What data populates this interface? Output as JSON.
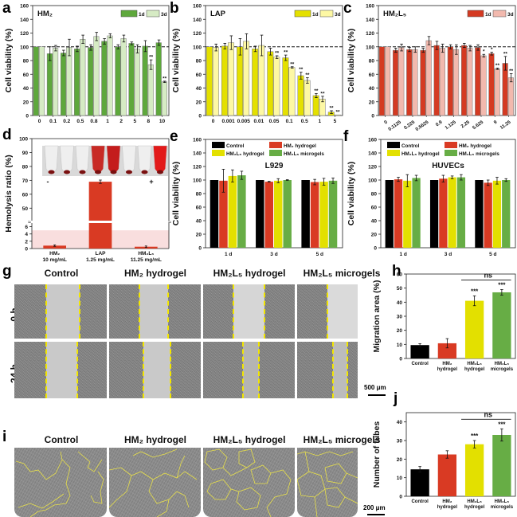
{
  "panels": {
    "a": "a",
    "b": "b",
    "c": "c",
    "d": "d",
    "e": "e",
    "f": "f",
    "g": "g",
    "h": "h",
    "i": "i",
    "j": "j"
  },
  "colors": {
    "green_dark": "#5ea83c",
    "green_light": "#d6ebc4",
    "yellow_dark": "#e4e000",
    "yellow_light": "#fdf8a4",
    "red_dark": "#d43a22",
    "red_light": "#f2b9ae",
    "black": "#000000",
    "red_mid": "#d93a23",
    "yellow_mid": "#e3e000",
    "green_mid": "#67ad45",
    "hemolysis_band": "#f9dede",
    "dash_yellow": "#f2e600"
  },
  "chart_data": [
    {
      "id": "a",
      "type": "bar",
      "title": "HM₂",
      "xlabel": "Concentration (mg/mL)",
      "ylabel": "Cell viability (%)",
      "ylim": [
        0,
        160
      ],
      "yticks": [
        0,
        20,
        40,
        60,
        80,
        100,
        120,
        140,
        160
      ],
      "reference_line": 100,
      "categories": [
        "0",
        "0.1",
        "0.2",
        "0.5",
        "0.8",
        "1",
        "2",
        "5",
        "8",
        "10"
      ],
      "legend": [
        "1d",
        "3d"
      ],
      "series": [
        {
          "name": "1d",
          "values": [
            100,
            90,
            91,
            97,
            99,
            108,
            100,
            105,
            101,
            106
          ],
          "errors": [
            0,
            10,
            4,
            4,
            4,
            4,
            3,
            2,
            8,
            4
          ],
          "marks": [
            "",
            "",
            "",
            "",
            "",
            "",
            "",
            "",
            "",
            ""
          ]
        },
        {
          "name": "3d",
          "values": [
            100,
            98,
            99,
            111,
            115,
            116,
            112,
            97,
            74,
            49
          ],
          "errors": [
            0,
            4,
            12,
            6,
            6,
            3,
            5,
            6,
            7,
            1
          ],
          "marks": [
            "",
            "",
            "",
            "",
            "",
            "",
            "",
            "",
            "**",
            "**"
          ]
        }
      ]
    },
    {
      "id": "b",
      "type": "bar",
      "title": "LAP",
      "xlabel": "Concentration (mg/mL)",
      "ylabel": "Cell viability (%)",
      "ylim": [
        0,
        160
      ],
      "yticks": [
        0,
        20,
        40,
        60,
        80,
        100,
        120,
        140,
        160
      ],
      "reference_line": 100,
      "categories": [
        "0",
        "0.001",
        "0.005",
        "0.01",
        "0.05",
        "0.1",
        "0.5",
        "1",
        "5"
      ],
      "legend": [
        "1d",
        "3d"
      ],
      "series": [
        {
          "name": "1d",
          "values": [
            100,
            101,
            100,
            97,
            93,
            84,
            58,
            29,
            5
          ],
          "errors": [
            0,
            4,
            12,
            4,
            5,
            4,
            5,
            3,
            2
          ],
          "marks": [
            "",
            "",
            "",
            "",
            "",
            "**",
            "**",
            "**",
            "**"
          ]
        },
        {
          "name": "3d",
          "values": [
            99,
            106,
            108,
            102,
            85,
            70,
            51,
            24,
            1
          ],
          "errors": [
            5,
            10,
            11,
            15,
            2,
            1,
            4,
            4,
            0
          ],
          "marks": [
            "",
            "",
            "",
            "",
            "**",
            "**",
            "**",
            "**",
            "**"
          ]
        }
      ]
    },
    {
      "id": "c",
      "type": "bar",
      "title": "HM₂L₅",
      "xlabel": "Concentration (mg/mL)",
      "ylabel": "Cell viability (%)",
      "ylim": [
        0,
        160
      ],
      "yticks": [
        0,
        20,
        40,
        60,
        80,
        100,
        120,
        140,
        160
      ],
      "reference_line": 100,
      "categories": [
        "0",
        "0.1125",
        "0.225",
        "0.5625",
        "0.9",
        "1.125",
        "2.25",
        "5.625",
        "9",
        "11.25"
      ],
      "legend": [
        "1d",
        "3d"
      ],
      "series": [
        {
          "name": "1d",
          "values": [
            100,
            95,
            96,
            95,
            102,
            100,
            102,
            99,
            90,
            76
          ],
          "errors": [
            0,
            3,
            3,
            3,
            6,
            3,
            3,
            4,
            2,
            10
          ],
          "marks": [
            "",
            "",
            "",
            "",
            "",
            "",
            "",
            "",
            "*",
            "**"
          ]
        },
        {
          "name": "3d",
          "values": [
            100,
            99,
            96,
            109,
            98,
            96,
            98,
            87,
            68,
            55
          ],
          "errors": [
            0,
            5,
            4,
            6,
            6,
            7,
            4,
            2,
            1,
            6
          ],
          "marks": [
            "",
            "",
            "",
            "",
            "",
            "",
            "",
            "*",
            "**",
            "**"
          ]
        }
      ]
    },
    {
      "id": "d",
      "type": "bar",
      "title": "",
      "xlabel": "",
      "ylabel": "Hemolysis ratio (%)",
      "ylim_lower": [
        0,
        7
      ],
      "ylim_upper": [
        41,
        100
      ],
      "yticks_lower": [
        0,
        2,
        4,
        6
      ],
      "yticks_upper": [
        50,
        60,
        70,
        80,
        90,
        100
      ],
      "threshold_band": 5,
      "categories": [
        "HM₂\n10 mg/mL",
        "LAP\n1.25 mg/mL",
        "HM₂L₅\n11.25 mg/mL"
      ],
      "category_names": [
        "HM₂",
        "LAP",
        "HM₂L₅"
      ],
      "category_conc": [
        "10 mg/mL",
        "1.25 mg/mL",
        "11.25 mg/mL"
      ],
      "values": [
        0.8,
        69,
        0.5
      ],
      "errors": [
        0.2,
        1.2,
        0.2
      ],
      "annotations": [
        "-",
        "+"
      ]
    },
    {
      "id": "e",
      "type": "bar",
      "title": "L929",
      "xlabel": "",
      "ylabel": "Cell viability (%)",
      "ylim": [
        0,
        160
      ],
      "yticks": [
        0,
        20,
        40,
        60,
        80,
        100,
        120,
        140,
        160
      ],
      "categories": [
        "1 d",
        "3 d",
        "5 d"
      ],
      "legend": [
        "Control",
        "HM₂ hydrogel",
        "HM₂L₅ hydrogel",
        "HM₂L₅ microgels"
      ],
      "series": [
        {
          "name": "Control",
          "values": [
            100,
            100,
            100
          ],
          "errors": [
            0,
            0,
            0
          ]
        },
        {
          "name": "HM₂ hydrogel",
          "values": [
            99,
            97.5,
            97
          ],
          "errors": [
            17,
            0.5,
            4
          ]
        },
        {
          "name": "HM₂L₅ hydrogel",
          "values": [
            106,
            99,
            97.5
          ],
          "errors": [
            9,
            3,
            5
          ]
        },
        {
          "name": "HM₂L₅ microgels",
          "values": [
            107,
            100,
            99
          ],
          "errors": [
            6,
            0.5,
            4
          ]
        }
      ]
    },
    {
      "id": "f",
      "type": "bar",
      "title": "HUVECs",
      "xlabel": "",
      "ylabel": "Cell viability (%)",
      "ylim": [
        0,
        160
      ],
      "yticks": [
        0,
        20,
        40,
        60,
        80,
        100,
        120,
        140,
        160
      ],
      "categories": [
        "1 d",
        "3 d",
        "5 d"
      ],
      "legend": [
        "Control",
        "HM₂ hydrogel",
        "HM₂L₅ hydrogel",
        "HM₂L₅ microgels"
      ],
      "series": [
        {
          "name": "Control",
          "values": [
            100,
            100,
            100
          ],
          "errors": [
            0,
            0,
            0
          ]
        },
        {
          "name": "HM₂ hydrogel",
          "values": [
            101,
            102,
            96
          ],
          "errors": [
            3,
            5,
            4
          ]
        },
        {
          "name": "HM₂L₅ hydrogel",
          "values": [
            99,
            104,
            99
          ],
          "errors": [
            9,
            2,
            5
          ]
        },
        {
          "name": "HM₂L₅ microgels",
          "values": [
            103,
            104,
            100
          ],
          "errors": [
            4,
            4,
            2
          ]
        }
      ]
    },
    {
      "id": "h",
      "type": "bar",
      "title": "",
      "xlabel": "",
      "ylabel": "Migration area (%)",
      "ylim": [
        0,
        60
      ],
      "yticks": [
        0,
        10,
        20,
        30,
        40,
        50,
        60
      ],
      "categories": [
        "Control",
        "HM₂\nhydrogel",
        "HM₂L₅\nhydrogel",
        "HM₂L₅\nmicrogels"
      ],
      "category_line1": [
        "Control",
        "HM₂",
        "HM₂L₅",
        "HM₂L₅"
      ],
      "category_line2": [
        "",
        "hydrogel",
        "hydrogel",
        "microgels"
      ],
      "values": [
        9.5,
        10.8,
        41,
        47
      ],
      "errors": [
        1,
        3.3,
        3.5,
        2
      ],
      "marks": [
        "",
        "",
        "***",
        "***"
      ],
      "bracket": {
        "from": 2,
        "to": 3,
        "label": "ns"
      }
    },
    {
      "id": "j",
      "type": "bar",
      "title": "",
      "xlabel": "",
      "ylabel": "Number of tubes",
      "ylim": [
        0,
        45
      ],
      "yticks": [
        0,
        10,
        20,
        30,
        40
      ],
      "categories": [
        "Control",
        "HM₂\nhydrogel",
        "HM₂L₅\nhydrogel",
        "HM₂L₅\nmicrogels"
      ],
      "category_line1": [
        "Control",
        "HM₂",
        "HM₂L₅",
        "HM₂L₅"
      ],
      "category_line2": [
        "",
        "hydrogel",
        "hydrogel",
        "microgels"
      ],
      "values": [
        14.5,
        22.5,
        28,
        33
      ],
      "errors": [
        1.5,
        2,
        2,
        3.3
      ],
      "marks": [
        "",
        "",
        "***",
        "***"
      ],
      "bracket": {
        "from": 2,
        "to": 3,
        "label": "ns"
      }
    }
  ],
  "panel_g": {
    "columns": [
      "Control",
      "HM₂ hydrogel",
      "HM₂L₅ hydrogel",
      "HM₂L₅ microgels"
    ],
    "rows": [
      "0 h",
      "24 h"
    ],
    "scale_bar": "500 μm"
  },
  "panel_i": {
    "columns": [
      "Control",
      "HM₂ hydrogel",
      "HM₂L₅ hydrogel",
      "HM₂L₅ microgels"
    ],
    "scale_bar": "200 μm"
  }
}
